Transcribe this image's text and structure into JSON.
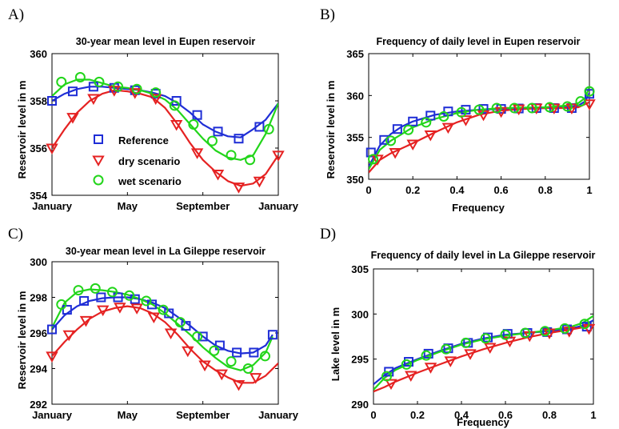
{
  "colors": {
    "reference": "#1f2ed6",
    "dry": "#e52222",
    "wet": "#22d51a",
    "axis": "#000000"
  },
  "chart_data": [
    {
      "panel_label": "A)",
      "type": "line",
      "title": "30-year mean level in Eupen reservoir",
      "xlabel": "",
      "ylabel": "Reservoir level in m",
      "xlim": [
        0,
        12
      ],
      "ylim": [
        354,
        360
      ],
      "x_ticks": [
        {
          "value": 0,
          "label": "January"
        },
        {
          "value": 4,
          "label": "May"
        },
        {
          "value": 8,
          "label": "September"
        },
        {
          "value": 12,
          "label": "January"
        }
      ],
      "y_ticks": [
        {
          "value": 354,
          "label": "354"
        },
        {
          "value": 356,
          "label": "356"
        },
        {
          "value": 358,
          "label": "358"
        },
        {
          "value": 360,
          "label": "360"
        }
      ],
      "legend": {
        "position": "lower-left",
        "entries": [
          "Reference",
          "dry scenario",
          "wet scenario"
        ]
      },
      "series": [
        {
          "name": "Reference",
          "key": "reference",
          "marker": "square",
          "x": [
            0,
            0.67,
            1.33,
            2,
            2.67,
            3.33,
            4,
            4.67,
            5.33,
            6,
            6.67,
            7.33,
            8,
            8.67,
            9.33,
            10,
            10.67,
            11.33,
            12
          ],
          "y": [
            358.0,
            358.3,
            358.5,
            358.6,
            358.6,
            358.55,
            358.5,
            358.45,
            358.35,
            358.2,
            357.9,
            357.5,
            357.0,
            356.7,
            356.5,
            356.45,
            356.8,
            357.2,
            357.9
          ],
          "marker_x": [
            0,
            1.1,
            2.2,
            3.3,
            4.4,
            5.5,
            6.6,
            7.7,
            8.8,
            9.9,
            11
          ],
          "marker_y": [
            358.0,
            358.4,
            358.6,
            358.55,
            358.45,
            358.3,
            358.0,
            357.4,
            356.7,
            356.4,
            356.9
          ]
        },
        {
          "name": "dry scenario",
          "key": "dry",
          "marker": "triangle-down",
          "x": [
            0,
            0.67,
            1.33,
            2,
            2.67,
            3.33,
            4,
            4.67,
            5.33,
            6,
            6.67,
            7.33,
            8,
            8.67,
            9.33,
            10,
            10.67,
            11.33,
            12
          ],
          "y": [
            356.0,
            356.8,
            357.5,
            358.0,
            358.3,
            358.45,
            358.4,
            358.3,
            358.15,
            357.7,
            357.0,
            356.2,
            355.5,
            355.0,
            354.6,
            354.4,
            354.5,
            354.9,
            355.7
          ],
          "marker_x": [
            0,
            1.1,
            2.2,
            3.3,
            4.4,
            5.5,
            6.6,
            7.7,
            8.8,
            9.9,
            11,
            12
          ],
          "marker_y": [
            356.0,
            357.3,
            358.1,
            358.45,
            358.35,
            358.1,
            357.0,
            355.8,
            354.9,
            354.35,
            354.6,
            355.7
          ]
        },
        {
          "name": "wet scenario",
          "key": "wet",
          "marker": "circle",
          "x": [
            0,
            0.67,
            1.33,
            2,
            2.67,
            3.33,
            4,
            4.67,
            5.33,
            6,
            6.67,
            7.33,
            8,
            8.67,
            9.33,
            10,
            10.67,
            11.33,
            12
          ],
          "y": [
            358.2,
            358.7,
            358.9,
            358.9,
            358.75,
            358.6,
            358.55,
            358.45,
            358.3,
            358.05,
            357.6,
            357.0,
            356.4,
            355.9,
            355.6,
            355.5,
            355.7,
            356.6,
            357.9
          ],
          "marker_x": [
            0.5,
            1.5,
            2.5,
            3.5,
            4.5,
            5.5,
            6.5,
            7.5,
            8.5,
            9.5,
            10.5,
            11.5
          ],
          "marker_y": [
            358.8,
            359.0,
            358.8,
            358.6,
            358.5,
            358.35,
            357.8,
            357.0,
            356.3,
            355.7,
            355.5,
            356.8
          ]
        }
      ]
    },
    {
      "panel_label": "B)",
      "type": "line",
      "title": "Frequency of daily level in Eupen reservoir",
      "xlabel": "Frequency",
      "ylabel": "Reservoir level in m",
      "xlim": [
        0,
        1
      ],
      "ylim": [
        350,
        365
      ],
      "x_ticks": [
        {
          "value": 0,
          "label": "0"
        },
        {
          "value": 0.2,
          "label": "0.2"
        },
        {
          "value": 0.4,
          "label": "0.4"
        },
        {
          "value": 0.6,
          "label": "0.6"
        },
        {
          "value": 0.8,
          "label": "0.8"
        },
        {
          "value": 1,
          "label": "1"
        }
      ],
      "y_ticks": [
        {
          "value": 350,
          "label": "350"
        },
        {
          "value": 355,
          "label": "355"
        },
        {
          "value": 360,
          "label": "360"
        },
        {
          "value": 365,
          "label": "365"
        }
      ],
      "series": [
        {
          "name": "Reference",
          "key": "reference",
          "marker": "square",
          "x": [
            0,
            0.05,
            0.1,
            0.15,
            0.2,
            0.3,
            0.4,
            0.5,
            0.6,
            0.7,
            0.8,
            0.9,
            0.95,
            0.98,
            1.0
          ],
          "y": [
            351.5,
            354.0,
            355.4,
            356.3,
            356.9,
            357.7,
            358.1,
            358.3,
            358.4,
            358.45,
            358.5,
            358.6,
            358.8,
            359.3,
            360.3
          ],
          "marker_x": [
            0.01,
            0.07,
            0.13,
            0.2,
            0.28,
            0.36,
            0.44,
            0.52,
            0.6,
            0.68,
            0.76,
            0.84,
            0.92,
            1.0
          ],
          "marker_y": [
            353.2,
            354.7,
            356.0,
            356.9,
            357.6,
            358.1,
            358.3,
            358.4,
            358.4,
            358.45,
            358.5,
            358.5,
            358.5,
            360.2
          ]
        },
        {
          "name": "dry scenario",
          "key": "dry",
          "marker": "triangle-down",
          "x": [
            0,
            0.05,
            0.1,
            0.2,
            0.3,
            0.4,
            0.5,
            0.6,
            0.7,
            0.8,
            0.9,
            0.95,
            1.0
          ],
          "y": [
            350.8,
            352.3,
            353.1,
            354.3,
            355.6,
            356.8,
            357.7,
            358.2,
            358.4,
            358.5,
            358.5,
            358.6,
            359.2
          ],
          "marker_x": [
            0.04,
            0.12,
            0.2,
            0.28,
            0.36,
            0.44,
            0.52,
            0.6,
            0.68,
            0.76,
            0.84,
            0.92,
            1.0
          ],
          "marker_y": [
            352.4,
            353.2,
            354.2,
            355.3,
            356.2,
            357.1,
            357.7,
            358.1,
            358.4,
            358.5,
            358.5,
            358.5,
            359.0
          ]
        },
        {
          "name": "wet scenario",
          "key": "wet",
          "marker": "circle",
          "x": [
            0,
            0.05,
            0.1,
            0.2,
            0.3,
            0.4,
            0.5,
            0.6,
            0.7,
            0.8,
            0.9,
            0.95,
            0.98,
            1.0
          ],
          "y": [
            351.2,
            353.5,
            354.6,
            356.2,
            357.2,
            357.9,
            358.3,
            358.5,
            358.55,
            358.6,
            358.8,
            359.1,
            359.7,
            361.0
          ],
          "marker_x": [
            0.02,
            0.1,
            0.18,
            0.26,
            0.34,
            0.42,
            0.5,
            0.58,
            0.66,
            0.74,
            0.82,
            0.9,
            0.96,
            1.0
          ],
          "marker_y": [
            352.4,
            354.6,
            355.9,
            356.8,
            357.5,
            358.0,
            358.3,
            358.5,
            358.5,
            358.5,
            358.6,
            358.7,
            359.3,
            360.5
          ]
        }
      ]
    },
    {
      "panel_label": "C)",
      "type": "line",
      "title": "30-year mean level in La Gileppe reservoir",
      "xlabel": "",
      "ylabel": "Reservoir level in m",
      "xlim": [
        0,
        12
      ],
      "ylim": [
        292,
        300
      ],
      "x_ticks": [
        {
          "value": 0,
          "label": "January"
        },
        {
          "value": 4,
          "label": "May"
        },
        {
          "value": 8,
          "label": "September"
        },
        {
          "value": 12,
          "label": "January"
        }
      ],
      "y_ticks": [
        {
          "value": 292,
          "label": "292"
        },
        {
          "value": 294,
          "label": "294"
        },
        {
          "value": 296,
          "label": "296"
        },
        {
          "value": 298,
          "label": "298"
        },
        {
          "value": 300,
          "label": "300"
        }
      ],
      "series": [
        {
          "name": "Reference",
          "key": "reference",
          "marker": "square",
          "x": [
            0,
            0.67,
            1.33,
            2,
            2.67,
            3.33,
            4,
            4.67,
            5.33,
            6,
            6.67,
            7.33,
            8,
            8.67,
            9.33,
            10,
            10.67,
            11.33,
            11.7
          ],
          "y": [
            296.2,
            297.0,
            297.5,
            297.8,
            297.95,
            298.0,
            298.0,
            297.9,
            297.7,
            297.4,
            296.9,
            296.4,
            295.8,
            295.3,
            295.0,
            294.85,
            294.9,
            295.3,
            295.9
          ],
          "marker_x": [
            0,
            0.8,
            1.7,
            2.6,
            3.5,
            4.4,
            5.3,
            6.2,
            7.1,
            8.0,
            8.9,
            9.8,
            10.7,
            11.7
          ],
          "marker_y": [
            296.2,
            297.3,
            297.8,
            298.0,
            298.0,
            297.9,
            297.6,
            297.1,
            296.4,
            295.8,
            295.3,
            294.9,
            294.9,
            295.9
          ]
        },
        {
          "name": "dry scenario",
          "key": "dry",
          "marker": "triangle-down",
          "x": [
            0,
            0.67,
            1.33,
            2,
            2.67,
            3.33,
            4,
            4.67,
            5.33,
            6,
            6.67,
            7.33,
            8,
            8.67,
            9.33,
            10,
            10.67,
            11.33,
            12
          ],
          "y": [
            294.7,
            295.5,
            296.2,
            296.8,
            297.2,
            297.4,
            297.5,
            297.4,
            297.1,
            296.6,
            295.9,
            295.1,
            294.4,
            293.9,
            293.5,
            293.2,
            293.2,
            293.6,
            294.3
          ],
          "marker_x": [
            0,
            0.9,
            1.8,
            2.7,
            3.6,
            4.5,
            5.4,
            6.3,
            7.2,
            8.1,
            9.0,
            9.9,
            10.8
          ],
          "marker_y": [
            294.7,
            295.9,
            296.7,
            297.3,
            297.45,
            297.4,
            296.9,
            296.0,
            295.0,
            294.2,
            293.7,
            293.1,
            293.5
          ]
        },
        {
          "name": "wet scenario",
          "key": "wet",
          "marker": "circle",
          "x": [
            0,
            0.67,
            1.33,
            2,
            2.67,
            3.33,
            4,
            4.67,
            5.33,
            6,
            6.67,
            7.33,
            8,
            8.67,
            9.33,
            10,
            10.67,
            11.33,
            11.7
          ],
          "y": [
            296.3,
            297.7,
            298.3,
            298.45,
            298.4,
            298.3,
            298.15,
            297.9,
            297.6,
            297.1,
            296.5,
            295.9,
            295.2,
            294.6,
            294.1,
            293.9,
            294.2,
            294.9,
            295.8
          ],
          "marker_x": [
            0.5,
            1.4,
            2.3,
            3.2,
            4.1,
            5.0,
            5.9,
            6.8,
            7.7,
            8.6,
            9.5,
            10.4,
            11.3
          ],
          "marker_y": [
            297.6,
            298.4,
            298.5,
            298.3,
            298.1,
            297.8,
            297.3,
            296.6,
            295.8,
            295.0,
            294.4,
            294.0,
            294.7
          ]
        }
      ]
    },
    {
      "panel_label": "D)",
      "type": "line",
      "title": "Frequency of daily level in La Gileppe reservoir",
      "xlabel": "Frequency",
      "ylabel": "Lake level in m",
      "xlim": [
        0,
        1
      ],
      "ylim": [
        290,
        305
      ],
      "x_ticks": [
        {
          "value": 0,
          "label": "0"
        },
        {
          "value": 0.2,
          "label": "0.2"
        },
        {
          "value": 0.4,
          "label": "0.4"
        },
        {
          "value": 0.6,
          "label": "0.6"
        },
        {
          "value": 0.8,
          "label": "0.8"
        },
        {
          "value": 1,
          "label": "1"
        }
      ],
      "y_ticks": [
        {
          "value": 290,
          "label": "290"
        },
        {
          "value": 295,
          "label": "295"
        },
        {
          "value": 300,
          "label": "300"
        },
        {
          "value": 305,
          "label": "305"
        }
      ],
      "series": [
        {
          "name": "Reference",
          "key": "reference",
          "marker": "square",
          "x": [
            0,
            0.05,
            0.1,
            0.2,
            0.3,
            0.4,
            0.5,
            0.6,
            0.7,
            0.8,
            0.9,
            0.95,
            1.0
          ],
          "y": [
            292.2,
            293.2,
            294.0,
            295.0,
            295.9,
            296.7,
            297.3,
            297.7,
            297.9,
            298.1,
            298.4,
            298.7,
            299.3
          ],
          "marker_x": [
            0.07,
            0.16,
            0.25,
            0.34,
            0.43,
            0.52,
            0.61,
            0.7,
            0.79,
            0.88,
            0.97
          ],
          "marker_y": [
            293.6,
            294.7,
            295.6,
            296.2,
            296.8,
            297.4,
            297.8,
            297.9,
            298.0,
            298.3,
            298.6
          ]
        },
        {
          "name": "dry scenario",
          "key": "dry",
          "marker": "triangle-down",
          "x": [
            0,
            0.05,
            0.1,
            0.2,
            0.3,
            0.4,
            0.5,
            0.6,
            0.7,
            0.8,
            0.9,
            0.95,
            1.0
          ],
          "y": [
            291.4,
            291.9,
            292.5,
            293.5,
            294.4,
            295.3,
            296.1,
            296.8,
            297.4,
            297.9,
            298.3,
            298.5,
            298.8
          ],
          "marker_x": [
            0.08,
            0.17,
            0.26,
            0.35,
            0.44,
            0.53,
            0.62,
            0.71,
            0.8,
            0.89,
            0.98
          ],
          "marker_y": [
            292.3,
            293.2,
            294.1,
            294.8,
            295.6,
            296.3,
            297.0,
            297.6,
            297.9,
            298.1,
            298.4
          ]
        },
        {
          "name": "wet scenario",
          "key": "wet",
          "marker": "circle",
          "x": [
            0,
            0.05,
            0.1,
            0.2,
            0.3,
            0.4,
            0.5,
            0.6,
            0.7,
            0.8,
            0.9,
            0.95,
            1.0
          ],
          "y": [
            291.6,
            292.9,
            293.8,
            294.9,
            295.8,
            296.6,
            297.2,
            297.6,
            297.9,
            298.2,
            298.6,
            299.0,
            299.8
          ],
          "marker_x": [
            0.06,
            0.15,
            0.24,
            0.33,
            0.42,
            0.51,
            0.6,
            0.69,
            0.78,
            0.87,
            0.96
          ],
          "marker_y": [
            293.1,
            294.4,
            295.4,
            296.1,
            296.8,
            297.3,
            297.7,
            297.9,
            298.1,
            298.4,
            298.9
          ]
        }
      ]
    }
  ]
}
